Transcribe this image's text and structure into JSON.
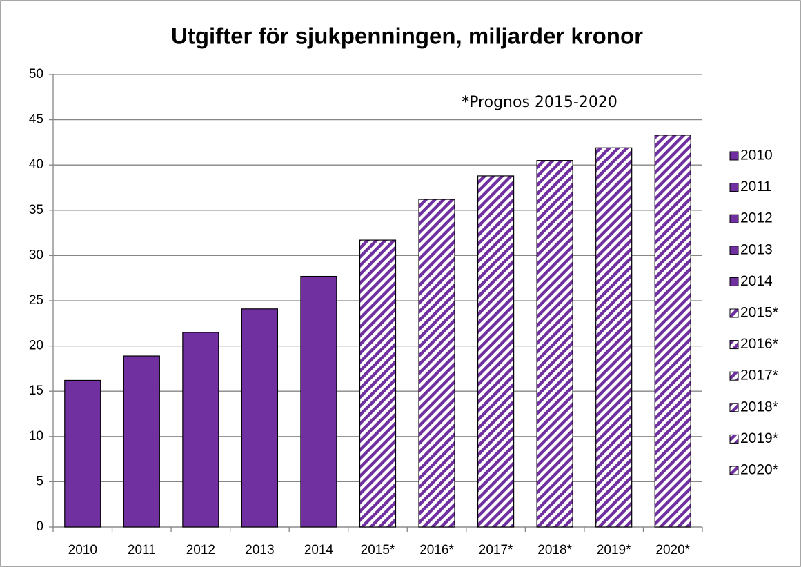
{
  "chart_data": {
    "type": "bar",
    "title": "Utgifter för sjukpenningen, miljarder kronor",
    "annotation": "*Prognos 2015-2020",
    "categories": [
      "2010",
      "2011",
      "2012",
      "2013",
      "2014",
      "2015*",
      "2016*",
      "2017*",
      "2018*",
      "2019*",
      "2020*"
    ],
    "values": [
      16.2,
      18.9,
      21.5,
      24.1,
      27.7,
      31.7,
      36.2,
      38.8,
      40.5,
      41.9,
      43.3
    ],
    "color": "#7030a0",
    "hatched": [
      false,
      false,
      false,
      false,
      false,
      true,
      true,
      true,
      true,
      true,
      true
    ],
    "ylim": [
      0,
      50
    ],
    "yticks": [
      0,
      5,
      10,
      15,
      20,
      25,
      30,
      35,
      40,
      45,
      50
    ],
    "grid": true,
    "legend": "right"
  }
}
